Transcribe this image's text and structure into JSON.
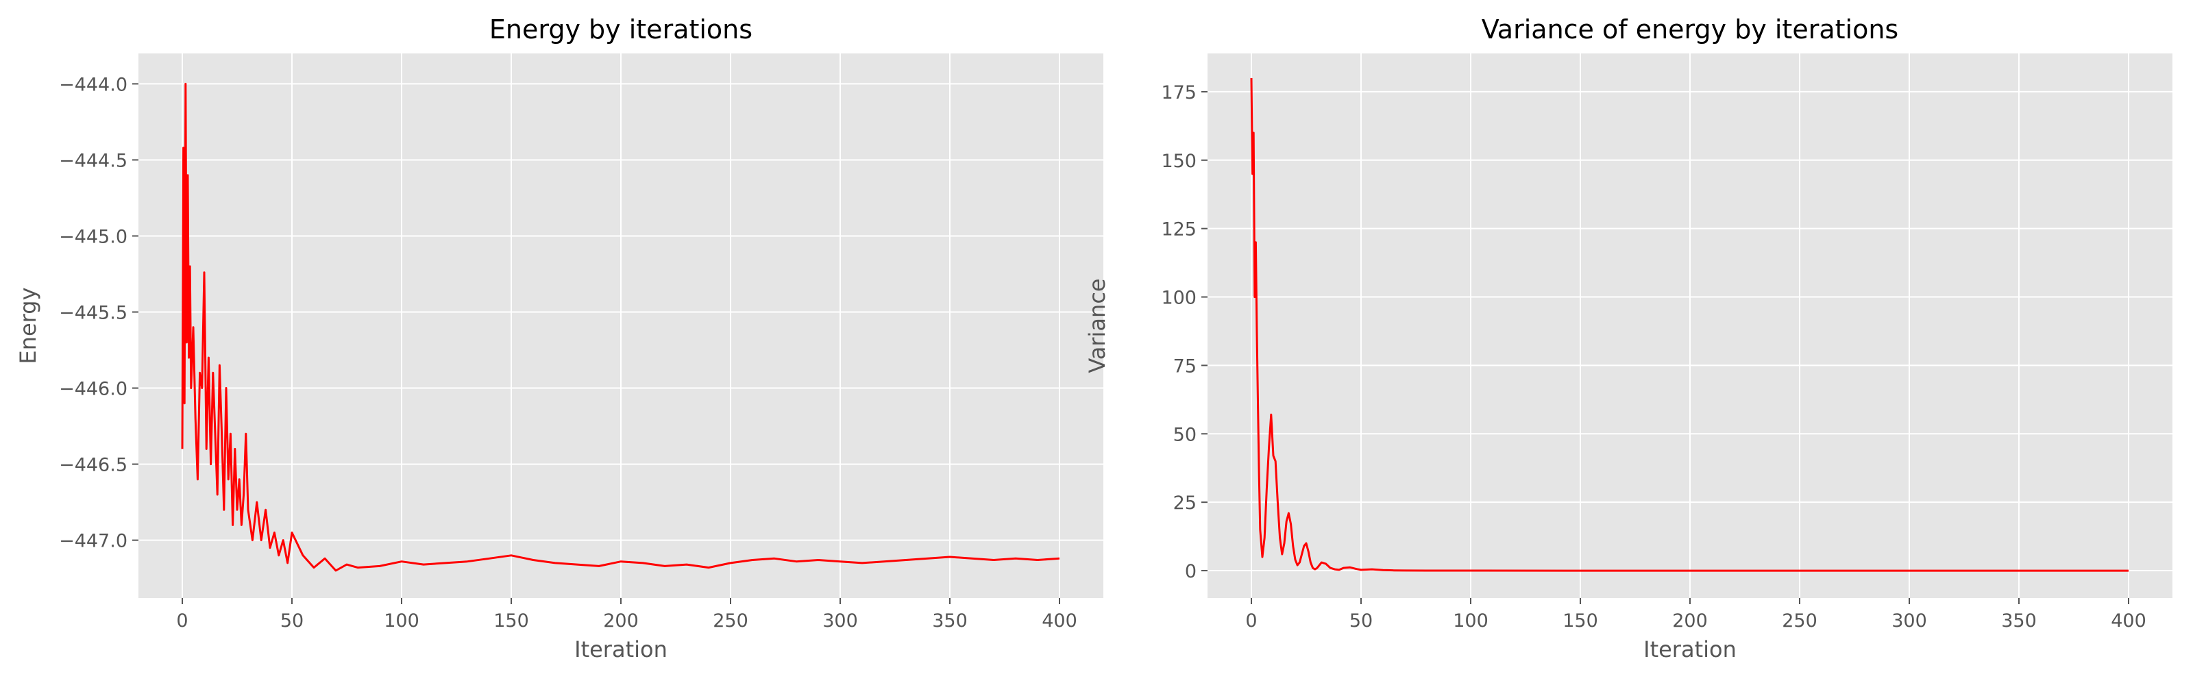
{
  "chart_data": [
    {
      "type": "line",
      "title": "Energy by iterations",
      "xlabel": "Iteration",
      "ylabel": "Energy",
      "xlim": [
        -20,
        420
      ],
      "ylim": [
        -447.38,
        -443.8
      ],
      "xticks": [
        0,
        50,
        100,
        150,
        200,
        250,
        300,
        350,
        400
      ],
      "xtick_labels": [
        "0",
        "50",
        "100",
        "150",
        "200",
        "250",
        "300",
        "350",
        "400"
      ],
      "yticks": [
        -447.0,
        -446.5,
        -446.0,
        -445.5,
        -445.0,
        -444.5,
        -444.0
      ],
      "ytick_labels": [
        "−447.0",
        "−446.5",
        "−446.0",
        "−445.5",
        "−445.0",
        "−444.5",
        "−444.0"
      ],
      "grid": true,
      "color": "#ff0000",
      "background": "#e5e5e5",
      "series": [
        {
          "x": [
            0,
            0.5,
            1,
            1.5,
            2,
            2.5,
            3,
            3.5,
            4,
            5,
            6,
            7,
            8,
            9,
            10,
            11,
            12,
            13,
            14,
            15,
            16,
            17,
            18,
            19,
            20,
            21,
            22,
            23,
            24,
            25,
            26,
            27,
            28,
            29,
            30,
            32,
            34,
            36,
            38,
            40,
            42,
            44,
            46,
            48,
            50,
            55,
            60,
            65,
            70,
            75,
            80,
            90,
            100,
            110,
            120,
            130,
            140,
            150,
            160,
            170,
            180,
            190,
            200,
            210,
            220,
            230,
            240,
            250,
            260,
            270,
            280,
            290,
            300,
            310,
            320,
            330,
            340,
            350,
            360,
            370,
            380,
            390,
            400
          ],
          "values": [
            -446.4,
            -444.42,
            -446.1,
            -444.0,
            -445.7,
            -444.6,
            -445.8,
            -445.2,
            -446.0,
            -445.6,
            -446.2,
            -446.6,
            -445.9,
            -446.0,
            -445.24,
            -446.4,
            -445.8,
            -446.5,
            -445.9,
            -446.3,
            -446.7,
            -445.85,
            -446.3,
            -446.8,
            -446.0,
            -446.6,
            -446.3,
            -446.9,
            -446.4,
            -446.8,
            -446.6,
            -446.9,
            -446.7,
            -446.3,
            -446.8,
            -447.0,
            -446.75,
            -447.0,
            -446.8,
            -447.05,
            -446.95,
            -447.1,
            -447.0,
            -447.15,
            -446.95,
            -447.1,
            -447.18,
            -447.12,
            -447.2,
            -447.16,
            -447.18,
            -447.17,
            -447.14,
            -447.16,
            -447.15,
            -447.14,
            -447.12,
            -447.1,
            -447.13,
            -447.15,
            -447.16,
            -447.17,
            -447.14,
            -447.15,
            -447.17,
            -447.16,
            -447.18,
            -447.15,
            -447.13,
            -447.12,
            -447.14,
            -447.13,
            -447.14,
            -447.15,
            -447.14,
            -447.13,
            -447.12,
            -447.11,
            -447.12,
            -447.13,
            -447.12,
            -447.13,
            -447.12
          ]
        }
      ]
    },
    {
      "type": "line",
      "title": "Variance of energy by iterations",
      "xlabel": "Iteration",
      "ylabel": "Variance",
      "xlim": [
        -20,
        420
      ],
      "ylim": [
        -10,
        189
      ],
      "xticks": [
        0,
        50,
        100,
        150,
        200,
        250,
        300,
        350,
        400
      ],
      "xtick_labels": [
        "0",
        "50",
        "100",
        "150",
        "200",
        "250",
        "300",
        "350",
        "400"
      ],
      "yticks": [
        0,
        25,
        50,
        75,
        100,
        125,
        150,
        175
      ],
      "ytick_labels": [
        "0",
        "25",
        "50",
        "75",
        "100",
        "125",
        "150",
        "175"
      ],
      "grid": true,
      "color": "#ff0000",
      "background": "#e5e5e5",
      "series": [
        {
          "x": [
            0,
            0.5,
            1,
            1.5,
            2,
            2.5,
            3,
            3.5,
            4,
            5,
            6,
            7,
            8,
            9,
            10,
            11,
            12,
            13,
            14,
            15,
            16,
            17,
            18,
            19,
            20,
            21,
            22,
            23,
            24,
            25,
            26,
            27,
            28,
            29,
            30,
            32,
            34,
            36,
            38,
            40,
            42,
            45,
            48,
            50,
            55,
            60,
            65,
            70,
            80,
            100,
            150,
            200,
            250,
            300,
            350,
            400
          ],
          "values": [
            180,
            145,
            160,
            100,
            120,
            87,
            60,
            35,
            15,
            5,
            12,
            30,
            45,
            57,
            42,
            40,
            25,
            12,
            6,
            10,
            18,
            21,
            17,
            9,
            4,
            2,
            3,
            6,
            9,
            10,
            7,
            3,
            1,
            0.5,
            1,
            3,
            2.5,
            1,
            0.5,
            0.3,
            1,
            1.2,
            0.6,
            0.3,
            0.5,
            0.2,
            0.1,
            0.05,
            0.02,
            0.01,
            0,
            0,
            0,
            0,
            0,
            0
          ]
        }
      ]
    }
  ]
}
